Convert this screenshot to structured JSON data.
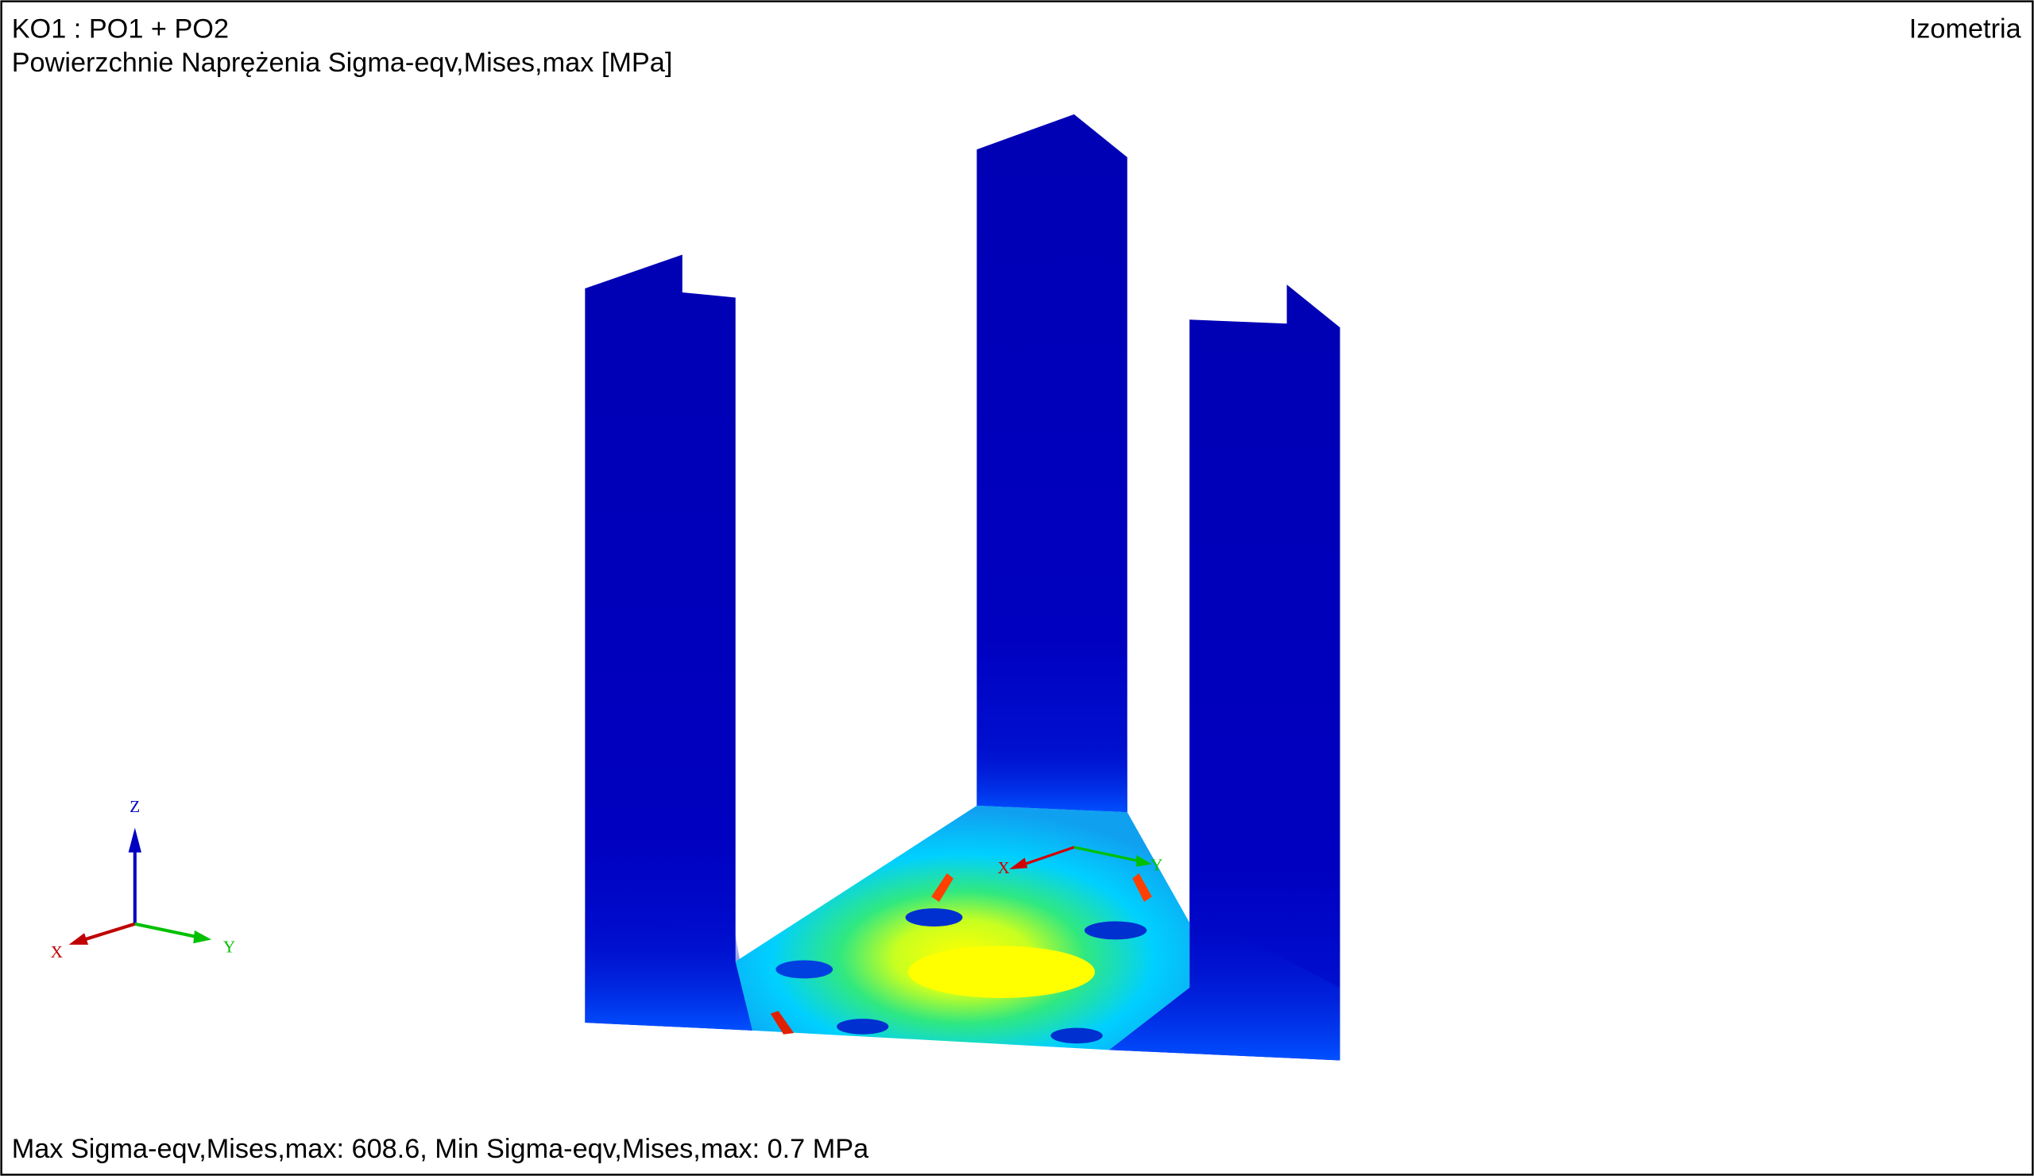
{
  "header": {
    "title": "KO1 : PO1 + PO2",
    "subtitle": "Powierzchnie Naprężenia Sigma-eqv,Mises,max [MPa]",
    "view": "Izometria"
  },
  "global_axes": {
    "z": "Z",
    "x": "X",
    "y": "Y"
  },
  "local_axes": {
    "x": "X",
    "y": "Y"
  },
  "footer": "Max Sigma-eqv,Mises,max: 608.6, Min Sigma-eqv,Mises,max: 0.7 MPa"
}
